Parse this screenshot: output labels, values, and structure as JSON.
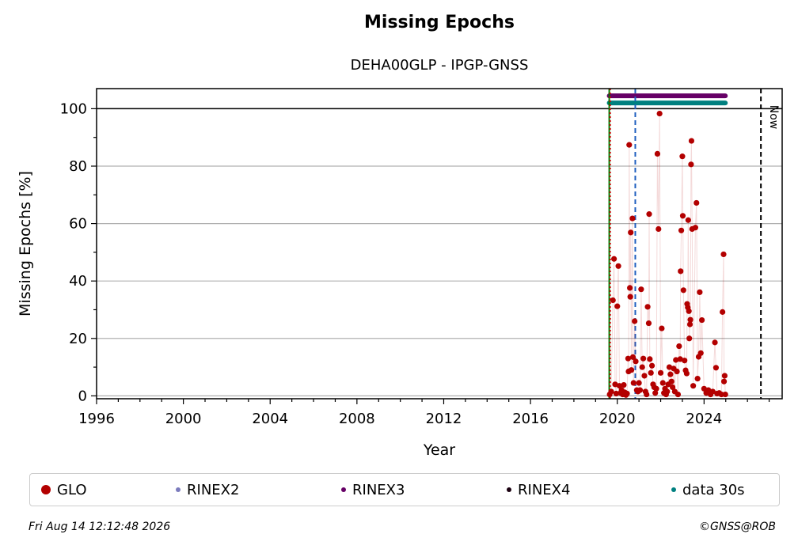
{
  "chart_data": {
    "type": "scatter",
    "title": "Missing Epochs",
    "subtitle": "DEHA00GLP - IPGP-GNSS",
    "xlabel": "Year",
    "ylabel": "Missing Epochs [%]",
    "xlim": [
      1996,
      2027.6
    ],
    "ylim": [
      -1,
      107
    ],
    "xticks": [
      1996,
      2000,
      2004,
      2008,
      2012,
      2016,
      2020,
      2024
    ],
    "yticks": [
      0,
      20,
      40,
      60,
      80,
      100
    ],
    "grid": "y-major",
    "now_label": "Now",
    "now_year": 2026.62,
    "vlines": [
      {
        "x": 2019.63,
        "color": "#007a00",
        "style": "solid"
      },
      {
        "x": 2019.67,
        "color": "#cc0000",
        "style": "dotted"
      },
      {
        "x": 2020.83,
        "color": "#1f5fbf",
        "style": "dashed"
      }
    ],
    "hline_at": 100,
    "bars": [
      {
        "name": "RINEX3",
        "y": 104.5,
        "x_start": 2019.63,
        "x_end": 2024.98,
        "color": "#660066"
      },
      {
        "name": "data 30s",
        "y": 102.0,
        "x_start": 2019.63,
        "x_end": 2024.98,
        "color": "#008080"
      }
    ],
    "series": [
      {
        "name": "GLO",
        "color": "#b30000",
        "points": [
          [
            2019.65,
            0.5
          ],
          [
            2019.72,
            1.5
          ],
          [
            2019.8,
            33.3
          ],
          [
            2019.85,
            47.7
          ],
          [
            2019.9,
            4.0
          ],
          [
            2019.95,
            0.8
          ],
          [
            2020.0,
            31.2
          ],
          [
            2020.05,
            45.2
          ],
          [
            2020.1,
            3.5
          ],
          [
            2020.15,
            1.0
          ],
          [
            2020.2,
            2.0
          ],
          [
            2020.25,
            0.5
          ],
          [
            2020.3,
            3.8
          ],
          [
            2020.35,
            1.2
          ],
          [
            2020.4,
            0.3
          ],
          [
            2020.45,
            0.8
          ],
          [
            2020.5,
            13.0
          ],
          [
            2020.52,
            8.5
          ],
          [
            2020.55,
            87.4
          ],
          [
            2020.58,
            37.6
          ],
          [
            2020.6,
            34.5
          ],
          [
            2020.62,
            56.9
          ],
          [
            2020.65,
            9.0
          ],
          [
            2020.7,
            61.8
          ],
          [
            2020.72,
            13.5
          ],
          [
            2020.75,
            4.5
          ],
          [
            2020.8,
            26.0
          ],
          [
            2020.85,
            12.0
          ],
          [
            2020.9,
            2.0
          ],
          [
            2020.95,
            1.5
          ],
          [
            2021.0,
            4.5
          ],
          [
            2021.05,
            2.0
          ],
          [
            2021.1,
            37.1
          ],
          [
            2021.15,
            10.0
          ],
          [
            2021.2,
            13.0
          ],
          [
            2021.25,
            7.0
          ],
          [
            2021.3,
            1.5
          ],
          [
            2021.35,
            0.5
          ],
          [
            2021.4,
            31.0
          ],
          [
            2021.45,
            25.3
          ],
          [
            2021.47,
            63.3
          ],
          [
            2021.5,
            12.8
          ],
          [
            2021.55,
            8.0
          ],
          [
            2021.6,
            10.5
          ],
          [
            2021.65,
            4.0
          ],
          [
            2021.7,
            3.0
          ],
          [
            2021.75,
            1.0
          ],
          [
            2021.8,
            2.5
          ],
          [
            2021.85,
            84.3
          ],
          [
            2021.9,
            58.1
          ],
          [
            2021.95,
            98.3
          ],
          [
            2022.0,
            8.0
          ],
          [
            2022.05,
            23.5
          ],
          [
            2022.1,
            4.5
          ],
          [
            2022.15,
            1.0
          ],
          [
            2022.2,
            2.5
          ],
          [
            2022.25,
            0.5
          ],
          [
            2022.3,
            1.5
          ],
          [
            2022.35,
            4.0
          ],
          [
            2022.4,
            10.0
          ],
          [
            2022.45,
            7.5
          ],
          [
            2022.5,
            5.0
          ],
          [
            2022.55,
            3.0
          ],
          [
            2022.6,
            9.5
          ],
          [
            2022.65,
            1.5
          ],
          [
            2022.7,
            12.5
          ],
          [
            2022.75,
            8.5
          ],
          [
            2022.8,
            0.5
          ],
          [
            2022.85,
            17.3
          ],
          [
            2022.9,
            12.8
          ],
          [
            2022.92,
            43.4
          ],
          [
            2022.95,
            57.6
          ],
          [
            2023.0,
            83.4
          ],
          [
            2023.02,
            62.7
          ],
          [
            2023.05,
            36.8
          ],
          [
            2023.1,
            12.3
          ],
          [
            2023.15,
            8.9
          ],
          [
            2023.2,
            7.8
          ],
          [
            2023.22,
            32.0
          ],
          [
            2023.25,
            30.8
          ],
          [
            2023.27,
            61.2
          ],
          [
            2023.3,
            29.5
          ],
          [
            2023.32,
            20.0
          ],
          [
            2023.35,
            24.9
          ],
          [
            2023.37,
            26.5
          ],
          [
            2023.4,
            80.6
          ],
          [
            2023.42,
            88.8
          ],
          [
            2023.45,
            58.1
          ],
          [
            2023.5,
            3.5
          ],
          [
            2023.6,
            58.6
          ],
          [
            2023.65,
            67.2
          ],
          [
            2023.7,
            6.0
          ],
          [
            2023.75,
            13.6
          ],
          [
            2023.8,
            36.1
          ],
          [
            2023.85,
            14.9
          ],
          [
            2023.9,
            26.4
          ],
          [
            2024.0,
            2.5
          ],
          [
            2024.1,
            1.0
          ],
          [
            2024.2,
            2.0
          ],
          [
            2024.3,
            0.5
          ],
          [
            2024.4,
            1.5
          ],
          [
            2024.5,
            18.6
          ],
          [
            2024.55,
            9.8
          ],
          [
            2024.6,
            0.8
          ],
          [
            2024.7,
            1.0
          ],
          [
            2024.8,
            0.5
          ],
          [
            2024.85,
            29.2
          ],
          [
            2024.9,
            49.3
          ],
          [
            2024.92,
            5.0
          ],
          [
            2024.95,
            7.0
          ],
          [
            2024.98,
            0.5
          ]
        ]
      },
      {
        "name": "RINEX2",
        "color": "#7b7bbd",
        "points": []
      },
      {
        "name": "RINEX3",
        "color": "#660066",
        "points": []
      },
      {
        "name": "RINEX4",
        "color": "#1a0010",
        "points": []
      },
      {
        "name": "data 30s",
        "color": "#008080",
        "points": []
      }
    ],
    "legend_position": "bottom"
  },
  "legend": [
    {
      "label": "GLO",
      "color": "#b30000",
      "size": 12
    },
    {
      "label": "RINEX2",
      "color": "#7b7bbd",
      "size": 6
    },
    {
      "label": "RINEX3",
      "color": "#660066",
      "size": 6
    },
    {
      "label": "RINEX4",
      "color": "#1a0010",
      "size": 6
    },
    {
      "label": "data 30s",
      "color": "#008080",
      "size": 6
    }
  ],
  "footer": {
    "timestamp": "Fri Aug 14 12:12:48 2026",
    "copyright": "©GNSS@ROB"
  }
}
